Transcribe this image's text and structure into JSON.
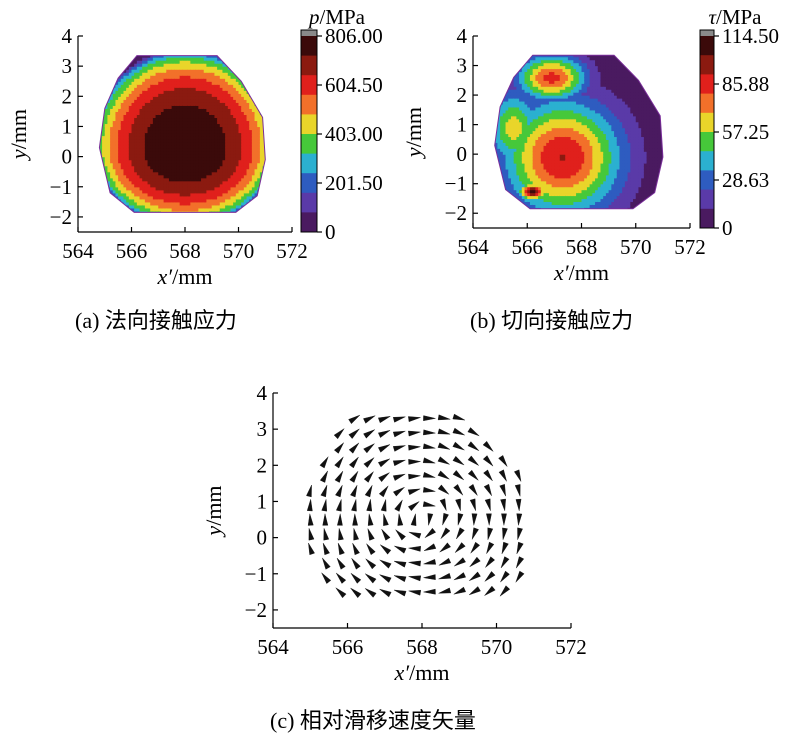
{
  "figure": {
    "panel_a": {
      "caption": "(a) 法向接触应力"
    },
    "panel_b": {
      "caption": "(b) 切向接触应力"
    },
    "panel_c": {
      "caption": "(c) 相对滑移速度矢量"
    }
  },
  "chart_data": [
    {
      "type": "heatmap",
      "panel": "a",
      "xlabel": "x′/mm",
      "ylabel": "y/mm",
      "xlim": [
        564,
        572
      ],
      "ylim": [
        -2.5,
        4
      ],
      "x_ticks": [
        "564",
        "566",
        "568",
        "570",
        "572"
      ],
      "y_ticks": [
        "4",
        "3",
        "2",
        "1",
        "0",
        "−1",
        "−2"
      ],
      "colorbar": {
        "title": "p/MPa",
        "range": [
          0,
          806
        ],
        "ticks": [
          "806.00",
          "604.50",
          "403.00",
          "201.50",
          "0"
        ]
      },
      "contact_boundary": [
        [
          566.2,
          3.35
        ],
        [
          569.2,
          3.35
        ],
        [
          570.1,
          2.5
        ],
        [
          570.9,
          1.3
        ],
        [
          571.0,
          -0.1
        ],
        [
          570.7,
          -1.3
        ],
        [
          569.9,
          -1.85
        ],
        [
          566.1,
          -1.85
        ],
        [
          565.2,
          -1.2
        ],
        [
          564.8,
          0.3
        ],
        [
          565.0,
          1.6
        ],
        [
          565.5,
          2.6
        ]
      ],
      "field": {
        "model": "elliptic",
        "center": [
          568.0,
          0.3
        ],
        "peak": 806,
        "semi_axis_x": 3.55,
        "semi_axis_y_up": 3.3,
        "semi_axis_y_down": 2.6
      },
      "colors": [
        "#3b0a0a",
        "#8b1a10",
        "#e0201c",
        "#f2702a",
        "#e9d52a",
        "#46c83a",
        "#2bb0d0",
        "#2e5cc0",
        "#5a3aa8",
        "#4a1a60"
      ]
    },
    {
      "type": "heatmap",
      "panel": "b",
      "xlabel": "x′/mm",
      "ylabel": "y/mm",
      "xlim": [
        564,
        572
      ],
      "ylim": [
        -2.5,
        4
      ],
      "x_ticks": [
        "564",
        "566",
        "568",
        "570",
        "572"
      ],
      "y_ticks": [
        "4",
        "3",
        "2",
        "1",
        "0",
        "−1",
        "−2"
      ],
      "colorbar": {
        "title": "τ/MPa",
        "range": [
          0,
          114.5
        ],
        "ticks": [
          "114.50",
          "85.88",
          "57.25",
          "28.63",
          "0"
        ]
      },
      "contact_boundary": [
        [
          566.2,
          3.35
        ],
        [
          569.2,
          3.35
        ],
        [
          570.1,
          2.5
        ],
        [
          570.9,
          1.3
        ],
        [
          571.0,
          -0.1
        ],
        [
          570.7,
          -1.3
        ],
        [
          569.9,
          -1.85
        ],
        [
          566.1,
          -1.85
        ],
        [
          565.2,
          -1.2
        ],
        [
          564.8,
          0.3
        ],
        [
          565.0,
          1.6
        ],
        [
          565.5,
          2.6
        ]
      ],
      "field": {
        "model": "blobs",
        "blobs": [
          {
            "center": [
              567.3,
              -0.1
            ],
            "amplitude": 92,
            "sx": 1.5,
            "sy": 1.35
          },
          {
            "center": [
              566.9,
              2.6
            ],
            "amplitude": 84,
            "sx": 0.9,
            "sy": 0.55
          },
          {
            "center": [
              566.2,
              -1.25
            ],
            "amplitude": 112,
            "sx": 0.35,
            "sy": 0.2
          },
          {
            "center": [
              565.5,
              0.9
            ],
            "amplitude": 62,
            "sx": 0.7,
            "sy": 0.9
          }
        ]
      },
      "colors": [
        "#3b0a0a",
        "#8b1a10",
        "#e0201c",
        "#f2702a",
        "#e9d52a",
        "#46c83a",
        "#2bb0d0",
        "#2e5cc0",
        "#5a3aa8",
        "#4a1a60"
      ]
    },
    {
      "type": "quiver",
      "panel": "c",
      "xlabel": "x′/mm",
      "ylabel": "y/mm",
      "xlim": [
        564,
        572
      ],
      "ylim": [
        -2.5,
        4
      ],
      "x_ticks": [
        "564",
        "566",
        "568",
        "570",
        "572"
      ],
      "y_ticks": [
        "4",
        "3",
        "2",
        "1",
        "0",
        "−1",
        "−2"
      ],
      "grid_spacing": 0.4,
      "vortex_center": [
        568.0,
        0.6
      ],
      "arrow_length_mm": 0.32,
      "contact_boundary": [
        [
          566.2,
          3.35
        ],
        [
          569.2,
          3.35
        ],
        [
          570.1,
          2.5
        ],
        [
          570.9,
          1.3
        ],
        [
          571.0,
          -0.1
        ],
        [
          570.7,
          -1.3
        ],
        [
          569.9,
          -1.85
        ],
        [
          566.1,
          -1.85
        ],
        [
          565.2,
          -1.2
        ],
        [
          564.8,
          0.3
        ],
        [
          565.0,
          1.6
        ],
        [
          565.5,
          2.6
        ]
      ]
    }
  ]
}
